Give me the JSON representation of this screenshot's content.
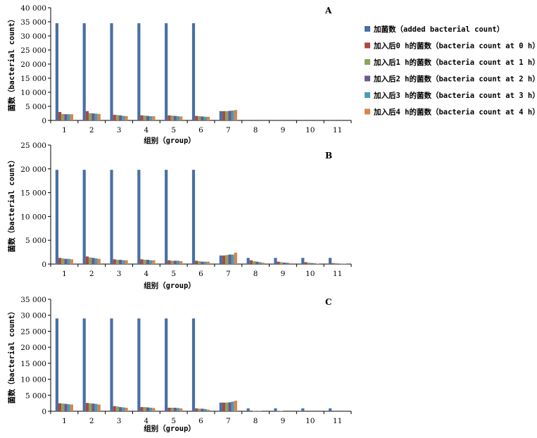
{
  "legend": {
    "entries": [
      {
        "label": "加菌数（added bacterial count）",
        "color": "#4a6fa5"
      },
      {
        "label": "加入后0 h的菌数（bacteria count at 0 h）",
        "color": "#a84a46"
      },
      {
        "label": "加入后1 h的菌数（bacteria count at 1 h）",
        "color": "#89a55a"
      },
      {
        "label": "加入后2 h的菌数（bacteria count at 2 h）",
        "color": "#6e5890"
      },
      {
        "label": "加入后3 h的菌数（bacteria count at 3 h）",
        "color": "#4a9bb0"
      },
      {
        "label": "加入后4 h的菌数（bacteria count at 4 h）",
        "color": "#d9854a"
      }
    ]
  },
  "chart_data": [
    {
      "type": "bar",
      "panel": "A",
      "xlabel": "组别（group）",
      "ylabel": "菌数（bacterial count）",
      "ylim": [
        0,
        40000
      ],
      "yticks": [
        "0",
        "5 000",
        "10 000",
        "15 000",
        "20 000",
        "25 000",
        "30 000",
        "35 000",
        "40 000"
      ],
      "categories": [
        "1",
        "2",
        "3",
        "4",
        "5",
        "6",
        "7",
        "8",
        "9",
        "10",
        "11"
      ],
      "series": [
        {
          "name": "加菌数（added bacterial count）",
          "values": [
            34500,
            34500,
            34500,
            34500,
            34500,
            34500,
            3300,
            200,
            200,
            200,
            200
          ]
        },
        {
          "name": "加入后0 h的菌数（bacteria count at 0 h）",
          "values": [
            3000,
            3300,
            2000,
            1800,
            1800,
            1600,
            3300,
            0,
            0,
            0,
            0
          ]
        },
        {
          "name": "加入后1 h的菌数（bacteria count at 1 h）",
          "values": [
            2300,
            2600,
            1900,
            1700,
            1700,
            1500,
            3300,
            0,
            0,
            0,
            0
          ]
        },
        {
          "name": "加入后2 h的菌数（bacteria count at 2 h）",
          "values": [
            2200,
            2500,
            1800,
            1600,
            1600,
            1400,
            3400,
            0,
            0,
            0,
            0
          ]
        },
        {
          "name": "加入后3 h的菌数（bacteria count at 3 h）",
          "values": [
            2200,
            2400,
            1600,
            1500,
            1500,
            1300,
            3500,
            0,
            0,
            0,
            0
          ]
        },
        {
          "name": "加入后4 h的菌数（bacteria count at 4 h）",
          "values": [
            2200,
            2300,
            1500,
            1500,
            1400,
            1300,
            3700,
            0,
            0,
            0,
            0
          ]
        }
      ]
    },
    {
      "type": "bar",
      "panel": "B",
      "xlabel": "组别（group）",
      "ylabel": "菌数（bacterial count）",
      "ylim": [
        0,
        25000
      ],
      "yticks": [
        "0",
        "5 000",
        "10 000",
        "15 000",
        "20 000",
        "25 000"
      ],
      "categories": [
        "1",
        "2",
        "3",
        "4",
        "5",
        "6",
        "7",
        "8",
        "9",
        "10",
        "11"
      ],
      "series": [
        {
          "name": "加菌数（added bacterial count）",
          "values": [
            19800,
            19800,
            19800,
            19800,
            19800,
            19800,
            1800,
            1300,
            1300,
            1300,
            1300
          ]
        },
        {
          "name": "加入后0 h的菌数（bacteria count at 0 h）",
          "values": [
            1300,
            1600,
            1000,
            1000,
            800,
            700,
            1800,
            800,
            500,
            400,
            200
          ]
        },
        {
          "name": "加入后1 h的菌数（bacteria count at 1 h）",
          "values": [
            1200,
            1400,
            900,
            900,
            700,
            600,
            1900,
            600,
            400,
            300,
            200
          ]
        },
        {
          "name": "加入后2 h的菌数（bacteria count at 2 h）",
          "values": [
            1100,
            1300,
            900,
            900,
            700,
            500,
            2000,
            500,
            300,
            200,
            100
          ]
        },
        {
          "name": "加入后3 h的菌数（bacteria count at 3 h）",
          "values": [
            1100,
            1200,
            800,
            800,
            700,
            500,
            2000,
            400,
            300,
            200,
            100
          ]
        },
        {
          "name": "加入后4 h的菌数（bacteria count at 4 h）",
          "values": [
            1000,
            1100,
            800,
            800,
            600,
            500,
            2400,
            300,
            200,
            100,
            100
          ]
        }
      ]
    },
    {
      "type": "bar",
      "panel": "C",
      "xlabel": "组别（group）",
      "ylabel": "菌数（bacterial count）",
      "ylim": [
        0,
        35000
      ],
      "yticks": [
        "0",
        "5 000",
        "10 000",
        "15 000",
        "20 000",
        "25 000",
        "30 000",
        "35 000"
      ],
      "categories": [
        "1",
        "2",
        "3",
        "4",
        "5",
        "6",
        "7",
        "8",
        "9",
        "10",
        "11"
      ],
      "series": [
        {
          "name": "加菌数（added bacterial count）",
          "values": [
            29000,
            29000,
            29000,
            29000,
            29000,
            29000,
            2700,
            900,
            900,
            900,
            900
          ]
        },
        {
          "name": "加入后0 h的菌数（bacteria count at 0 h）",
          "values": [
            2500,
            2600,
            1600,
            1300,
            1100,
            900,
            2700,
            200,
            100,
            0,
            0
          ]
        },
        {
          "name": "加入后1 h的菌数（bacteria count at 1 h）",
          "values": [
            2400,
            2500,
            1500,
            1300,
            1100,
            800,
            2700,
            100,
            100,
            0,
            0
          ]
        },
        {
          "name": "加入后2 h的菌数（bacteria count at 2 h）",
          "values": [
            2300,
            2400,
            1300,
            1200,
            1100,
            800,
            2800,
            100,
            0,
            0,
            0
          ]
        },
        {
          "name": "加入后3 h的菌数（bacteria count at 3 h）",
          "values": [
            2200,
            2300,
            1200,
            1100,
            1000,
            700,
            3000,
            100,
            0,
            0,
            0
          ]
        },
        {
          "name": "加入后4 h的菌数（bacteria count at 4 h）",
          "values": [
            2100,
            2100,
            1100,
            1000,
            900,
            500,
            3300,
            0,
            0,
            0,
            0
          ]
        }
      ]
    }
  ]
}
